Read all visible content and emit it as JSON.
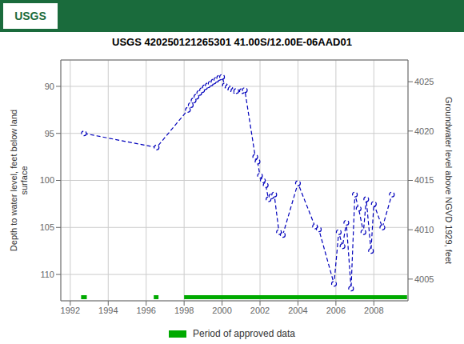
{
  "chart_data": {
    "type": "line",
    "title": "USGS 420250121265301 41.00S/12.00E-06AAD01",
    "annotations": [
      {
        "text": "USGS",
        "color": "#1a6b3c"
      }
    ],
    "ylabel": "Depth to water level, feet below land\nsurface",
    "y2label": "Groundwater level above NGVD 1929, feet",
    "x": [
      1992.72,
      1996.55,
      1998.2,
      1998.35,
      1998.5,
      1998.65,
      1998.8,
      1998.95,
      1999.1,
      1999.25,
      1999.4,
      1999.55,
      1999.7,
      1999.85,
      2000.0,
      2000.15,
      2000.3,
      2000.45,
      2000.6,
      2000.75,
      2001.05,
      2001.2,
      2001.75,
      2001.87,
      2002.0,
      2002.15,
      2002.3,
      2002.45,
      2002.6,
      2002.75,
      2003.0,
      2003.2,
      2004.0,
      2004.9,
      2005.1,
      2005.9,
      2006.15,
      2006.35,
      2006.55,
      2006.8,
      2007.0,
      2007.2,
      2007.45,
      2007.6,
      2007.85,
      2008.0,
      2008.45,
      2008.95
    ],
    "values": [
      95.0,
      96.5,
      92.5,
      92.0,
      91.5,
      91.1,
      90.7,
      90.4,
      90.1,
      89.9,
      89.7,
      89.5,
      89.3,
      89.1,
      89.0,
      89.9,
      90.1,
      90.3,
      90.45,
      90.5,
      90.5,
      90.4,
      97.5,
      98.0,
      99.5,
      100.0,
      100.5,
      102.0,
      101.7,
      101.5,
      105.5,
      105.8,
      100.3,
      104.9,
      105.2,
      111.0,
      105.5,
      107.0,
      104.5,
      111.5,
      101.5,
      103.0,
      105.5,
      102.0,
      107.5,
      102.5,
      105.0,
      101.5
    ],
    "color": "#0000bb",
    "line_style": "dashed",
    "marker": "circle",
    "xlim": [
      1991.5,
      2009.8
    ],
    "xticks": [
      1992,
      1994,
      1996,
      1998,
      2000,
      2002,
      2004,
      2006,
      2008
    ],
    "ylim": [
      112.8,
      87.2
    ],
    "yticks": [
      90,
      95,
      100,
      105,
      110
    ],
    "y2lim": [
      4002.8,
      4027.2
    ],
    "y2ticks": [
      4025,
      4020,
      4015,
      4010,
      4005
    ],
    "grid": true,
    "legend": "bottom",
    "approved_periods": {
      "label": "Period of approved data",
      "color": "#00aa00",
      "ranges": [
        [
          1992.57,
          1992.87
        ],
        [
          1996.4,
          1996.65
        ],
        [
          1998.0,
          2009.75
        ]
      ]
    }
  }
}
